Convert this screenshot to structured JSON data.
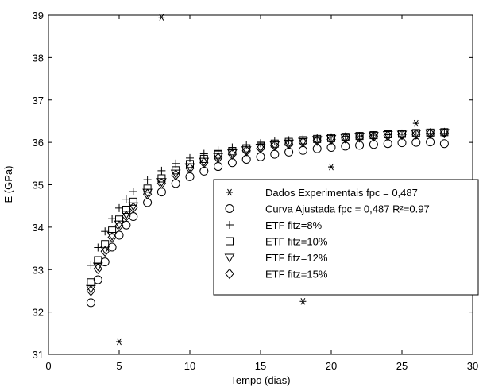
{
  "chart_data": {
    "type": "scatter",
    "title": "",
    "xlabel": "Tempo (dias)",
    "ylabel": "E (GPa)",
    "xlim": [
      0,
      30
    ],
    "ylim": [
      31,
      39
    ],
    "x_ticks": [
      0,
      5,
      10,
      15,
      20,
      25,
      30
    ],
    "y_ticks": [
      31,
      32,
      33,
      34,
      35,
      36,
      37,
      38,
      39
    ],
    "x_tick_labels": [
      "0",
      "5",
      "10",
      "15",
      "20",
      "25",
      "30"
    ],
    "y_tick_labels": [
      "31",
      "32",
      "33",
      "34",
      "35",
      "36",
      "37",
      "38",
      "39"
    ],
    "grid": false,
    "legend_position": "center-right",
    "colors": {
      "foreground": "#000000",
      "background": "#ffffff"
    },
    "series": [
      {
        "name": "Dados Experimentais fpc = 0,487",
        "marker": "asterisk",
        "x": [
          5,
          8,
          18,
          20,
          26
        ],
        "y": [
          31.3,
          38.95,
          32.25,
          35.42,
          36.45
        ]
      },
      {
        "name": "Curva Ajustada fpc = 0,487 R²=0.97",
        "marker": "circle",
        "x": [
          3,
          3.5,
          4,
          4.5,
          5,
          5.5,
          6,
          7,
          8,
          9,
          10,
          11,
          12,
          13,
          14,
          15,
          16,
          17,
          18,
          19,
          20,
          21,
          22,
          23,
          24,
          25,
          26,
          27,
          28
        ],
        "y": [
          32.22,
          32.76,
          33.18,
          33.53,
          33.81,
          34.05,
          34.25,
          34.58,
          34.83,
          35.03,
          35.19,
          35.32,
          35.43,
          35.52,
          35.6,
          35.66,
          35.72,
          35.77,
          35.81,
          35.85,
          35.88,
          35.91,
          35.93,
          35.95,
          35.97,
          35.99,
          36.0,
          36.01,
          35.97
        ]
      },
      {
        "name": "ETF fitz=8%",
        "marker": "plus",
        "x": [
          3,
          3.5,
          4,
          4.5,
          5,
          5.5,
          6,
          7,
          8,
          9,
          10,
          11,
          12,
          13,
          14,
          15,
          16,
          17,
          18,
          19,
          20,
          21,
          22,
          23,
          24,
          25,
          26,
          27,
          28
        ],
        "y": [
          33.1,
          33.52,
          33.9,
          34.2,
          34.45,
          34.66,
          34.84,
          35.12,
          35.33,
          35.5,
          35.63,
          35.73,
          35.81,
          35.88,
          35.93,
          35.98,
          36.02,
          36.05,
          36.08,
          36.1,
          36.12,
          36.14,
          36.15,
          36.17,
          36.18,
          36.19,
          36.2,
          36.21,
          36.21
        ]
      },
      {
        "name": "ETF fitz=10%",
        "marker": "square",
        "x": [
          3,
          3.5,
          4,
          4.5,
          5,
          5.5,
          6,
          7,
          8,
          9,
          10,
          11,
          12,
          13,
          14,
          15,
          16,
          17,
          18,
          19,
          20,
          21,
          22,
          23,
          24,
          25,
          26,
          27,
          28
        ],
        "y": [
          32.7,
          33.22,
          33.6,
          33.92,
          34.18,
          34.41,
          34.6,
          34.91,
          35.15,
          35.34,
          35.49,
          35.61,
          35.71,
          35.79,
          35.86,
          35.92,
          35.97,
          36.01,
          36.05,
          36.08,
          36.1,
          36.13,
          36.15,
          36.17,
          36.19,
          36.2,
          36.22,
          36.23,
          36.24
        ]
      },
      {
        "name": "ETF fitz=12%",
        "marker": "triangle-down",
        "x": [
          3,
          3.5,
          4,
          4.5,
          5,
          5.5,
          6,
          7,
          8,
          9,
          10,
          11,
          12,
          13,
          14,
          15,
          16,
          17,
          18,
          19,
          20,
          21,
          22,
          23,
          24,
          25,
          26,
          27,
          28
        ],
        "y": [
          32.55,
          33.08,
          33.48,
          33.8,
          34.07,
          34.3,
          34.5,
          34.82,
          35.07,
          35.27,
          35.42,
          35.55,
          35.66,
          35.75,
          35.82,
          35.88,
          35.94,
          35.98,
          36.02,
          36.06,
          36.09,
          36.11,
          36.14,
          36.16,
          36.18,
          36.19,
          36.21,
          36.22,
          36.23
        ]
      },
      {
        "name": "ETF fitz=15%",
        "marker": "diamond",
        "x": [
          3,
          3.5,
          4,
          4.5,
          5,
          5.5,
          6,
          7,
          8,
          9,
          10,
          11,
          12,
          13,
          14,
          15,
          16,
          17,
          18,
          19,
          20,
          21,
          22,
          23,
          24,
          25,
          26,
          27,
          28
        ],
        "y": [
          32.5,
          33.02,
          33.43,
          33.76,
          34.03,
          34.26,
          34.46,
          34.78,
          35.03,
          35.23,
          35.39,
          35.52,
          35.63,
          35.72,
          35.8,
          35.86,
          35.92,
          35.96,
          36.0,
          36.04,
          36.07,
          36.1,
          36.12,
          36.14,
          36.16,
          36.18,
          36.19,
          36.21,
          36.22
        ]
      }
    ]
  }
}
